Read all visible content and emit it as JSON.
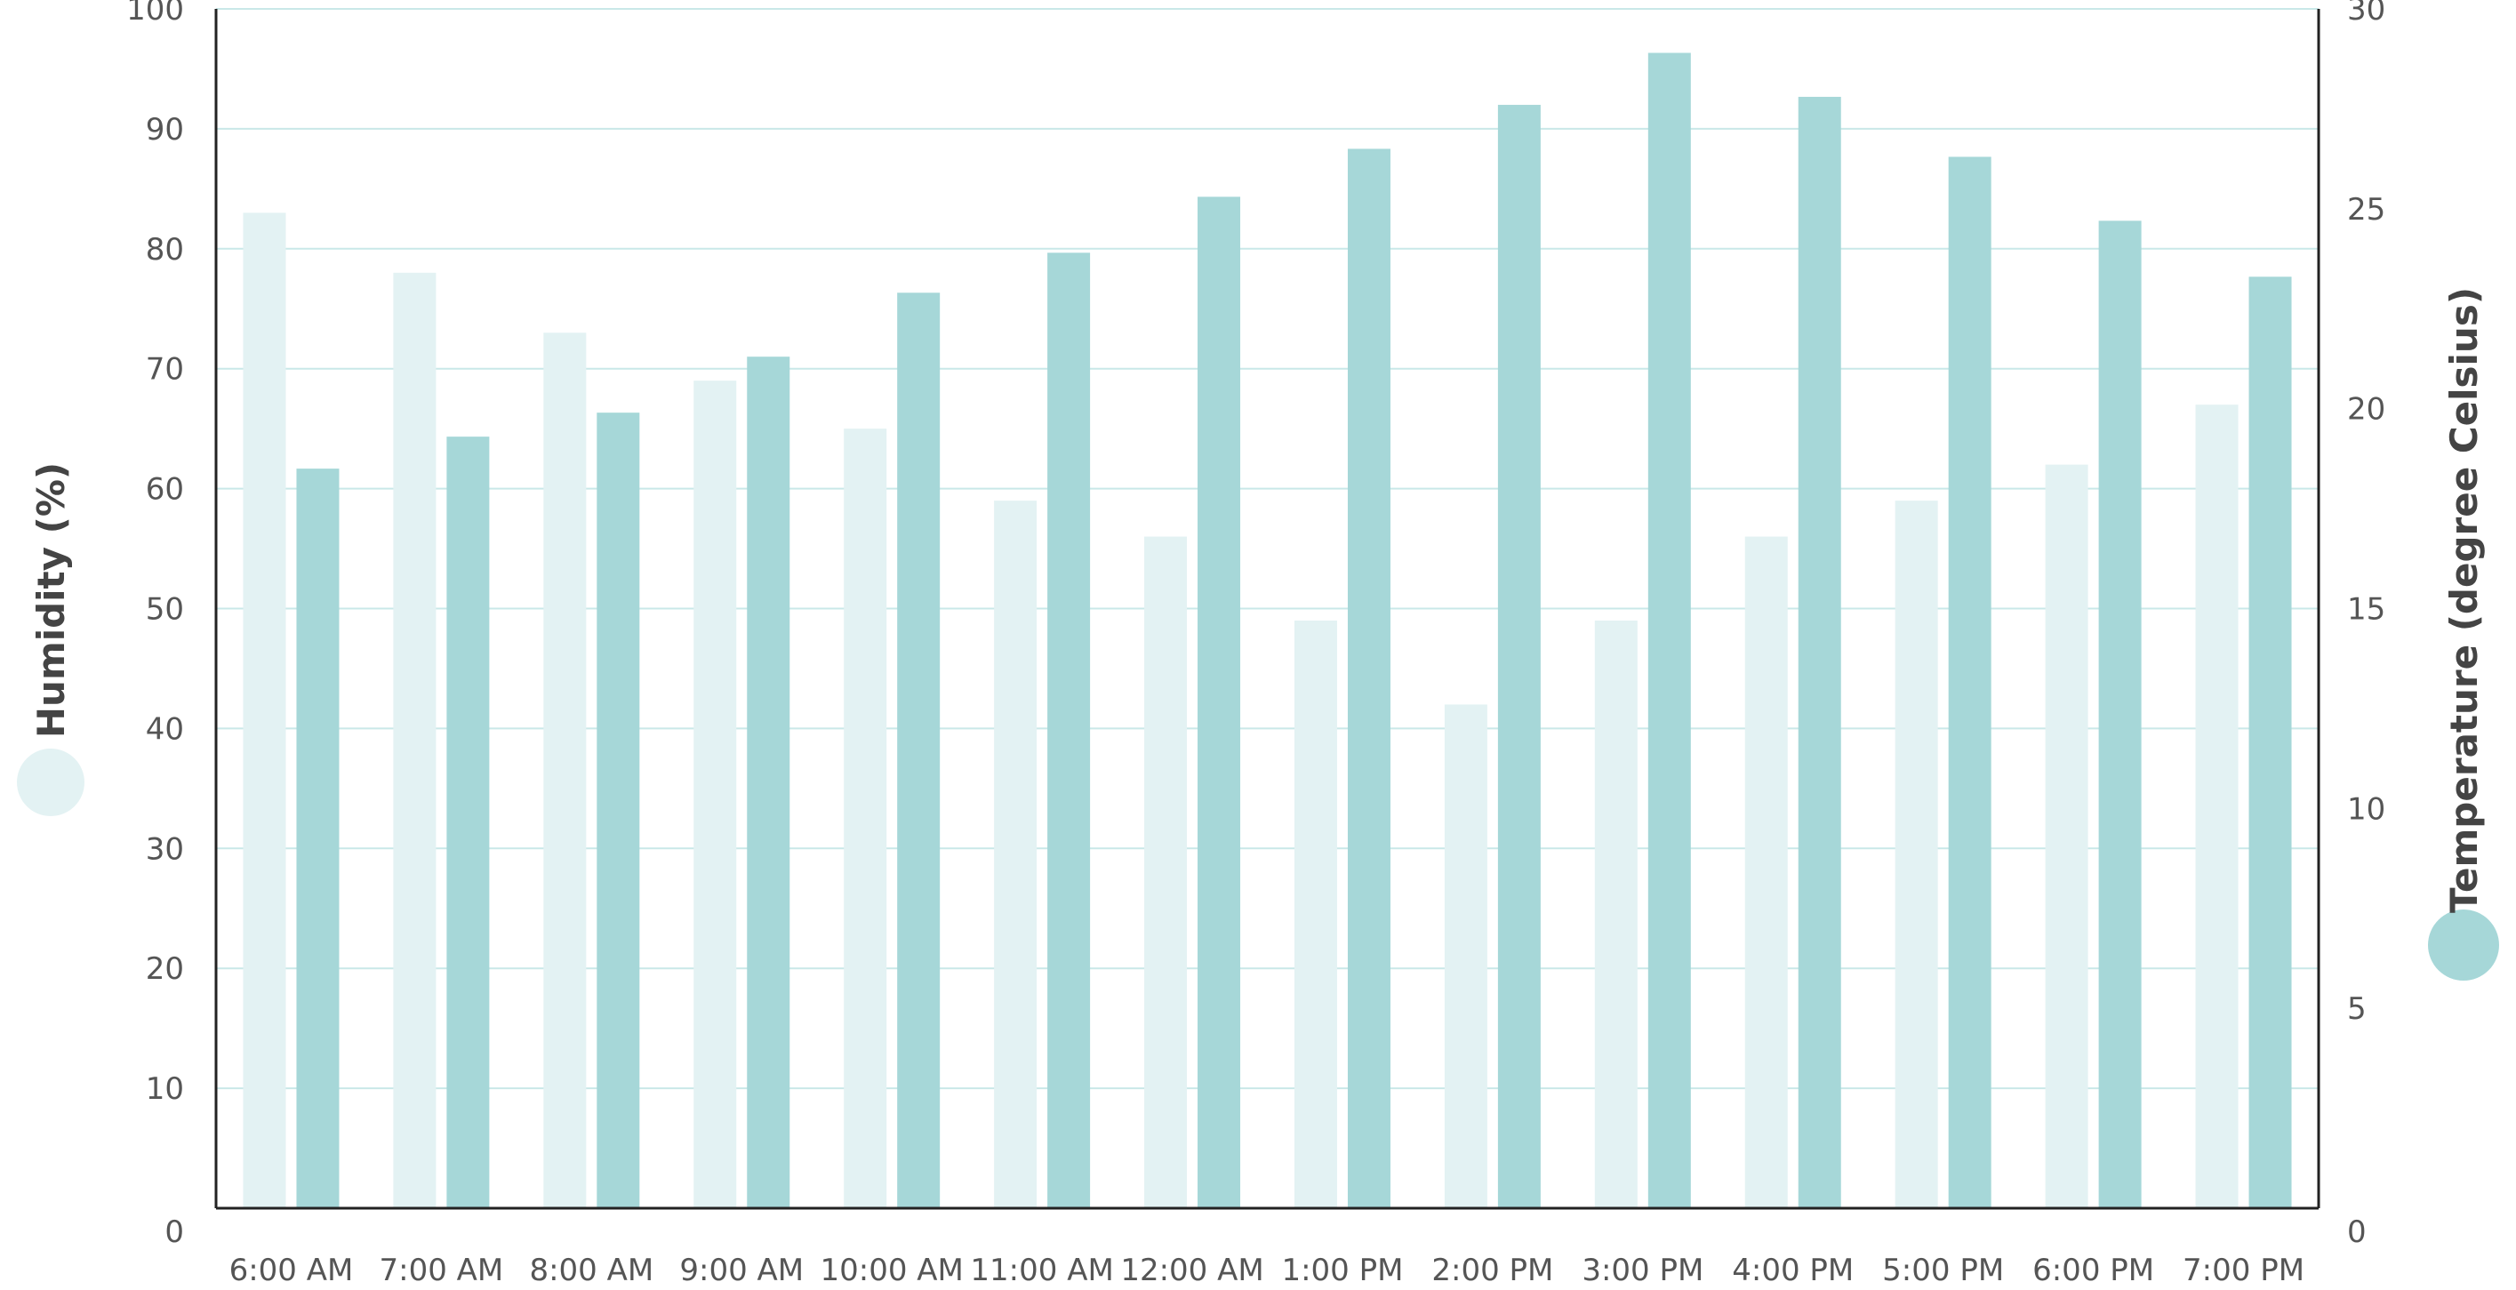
{
  "chart_data": {
    "type": "bar",
    "title": "",
    "categories": [
      "6:00 AM",
      "7:00 AM",
      "8:00 AM",
      "9:00 AM",
      "10:00 AM",
      "11:00 AM",
      "12:00 AM",
      "1:00 PM",
      "2:00 PM",
      "3:00 PM",
      "4:00 PM",
      "5:00 PM",
      "6:00 PM",
      "7:00 PM"
    ],
    "series": [
      {
        "name": "Humidity (%)",
        "axis": "left",
        "color": "#e3f2f3",
        "values": [
          83,
          78,
          73,
          69,
          65,
          59,
          56,
          49,
          42,
          49,
          56,
          59,
          62,
          67
        ]
      },
      {
        "name": "Temperature (degree Celsius)",
        "axis": "right",
        "color": "#a6d7d8",
        "values": [
          18.5,
          19.3,
          19.9,
          21.3,
          22.9,
          23.9,
          25.3,
          26.5,
          27.6,
          28.9,
          27.8,
          26.3,
          24.7,
          23.3
        ]
      }
    ],
    "y_left": {
      "label": "Humidity (%)",
      "ylim": [
        0,
        100
      ],
      "ticks": [
        "0",
        "10",
        "20",
        "30",
        "40",
        "50",
        "60",
        "70",
        "80",
        "90",
        "100"
      ]
    },
    "y_right": {
      "label": "Temperature (degree Celsius)",
      "ylim": [
        0,
        30
      ],
      "ticks": [
        "0",
        "5",
        "10",
        "15",
        "20",
        "25",
        "30"
      ]
    },
    "grid": true,
    "grid_color": "#c9e8e8",
    "legend": "axis-title markers (left and right)"
  }
}
